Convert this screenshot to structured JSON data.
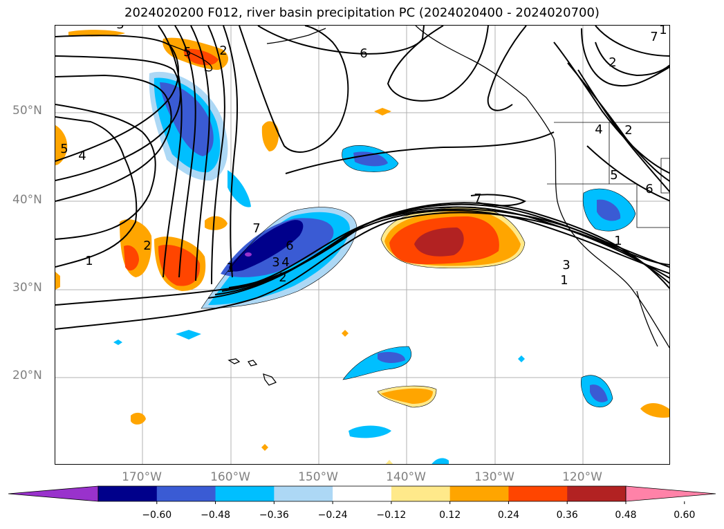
{
  "title": "2024020200 F012, river basin precipitation PC (2024020400 - 2024020700)",
  "lat_labels": [
    "50°N",
    "40°N",
    "30°N",
    "20°N"
  ],
  "lon_labels": [
    "170°W",
    "160°W",
    "150°W",
    "140°W",
    "130°W",
    "120°W"
  ],
  "colorbar": {
    "ticks": [
      "−0.60",
      "−0.48",
      "−0.36",
      "−0.24",
      "−0.12",
      "0.12",
      "0.24",
      "0.36",
      "0.48",
      "0.60"
    ],
    "colors": [
      "#9932cc",
      "#00008b",
      "#3a5bd4",
      "#00bfff",
      "#add8f5",
      "#ffffff",
      "#ffe98a",
      "#ffa500",
      "#ff4500",
      "#b22222",
      "#ff82a8"
    ]
  },
  "contour_labels": [
    "5",
    "2",
    "6",
    "7",
    "4",
    "1",
    "2",
    "3",
    "1",
    "2",
    "1",
    "7",
    "6",
    "4",
    "3",
    "2",
    "1",
    "7",
    "3",
    "1",
    "2",
    "4",
    "5",
    "6",
    "5"
  ],
  "colors": {
    "frame": "#000000",
    "grid": "#b0b0b0",
    "contour": "#000000"
  }
}
